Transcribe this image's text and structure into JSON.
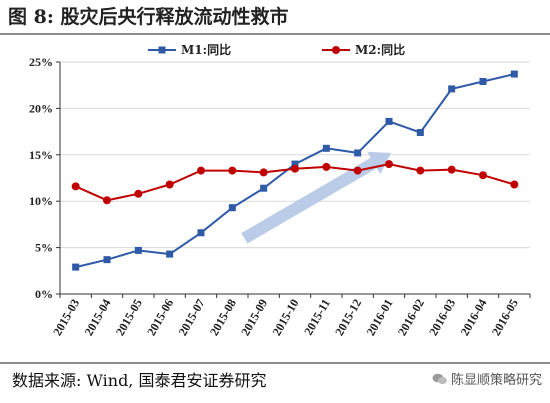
{
  "figure": {
    "title": "图 8:  股灾后央行释放流动性救市",
    "source": "数据来源:  Wind,  国泰君安证券研究",
    "watermark": "陈显顺策略研究"
  },
  "colors": {
    "m1": "#2e5aa8",
    "m2": "#c00000",
    "arrow": "#b4c7e7",
    "grid": "#d9d9d9"
  },
  "chart_data": {
    "type": "line",
    "title": "",
    "xlabel": "",
    "ylabel": "",
    "categories": [
      "2015-03",
      "2015-04",
      "2015-05",
      "2015-06",
      "2015-07",
      "2015-08",
      "2015-09",
      "2015-10",
      "2015-11",
      "2015-12",
      "2016-01",
      "2016-02",
      "2016-03",
      "2016-04",
      "2016-05"
    ],
    "ylim": [
      0,
      25
    ],
    "yticks": [
      0,
      5,
      10,
      15,
      20,
      25
    ],
    "ytick_format": "%",
    "grid": "horizontal",
    "legend_position": "top-center",
    "series": [
      {
        "name": "M1:同比",
        "marker": "square",
        "values": [
          2.9,
          3.7,
          4.7,
          4.3,
          6.6,
          9.3,
          11.4,
          14.0,
          15.7,
          15.2,
          18.6,
          17.4,
          22.1,
          22.9,
          23.7
        ]
      },
      {
        "name": "M2:同比",
        "marker": "circle",
        "values": [
          11.6,
          10.1,
          10.8,
          11.8,
          13.3,
          13.3,
          13.1,
          13.5,
          13.7,
          13.3,
          14.0,
          13.3,
          13.4,
          12.8,
          11.8
        ]
      }
    ],
    "annotations": [
      {
        "type": "arrow",
        "from": {
          "x": "2015-08",
          "y": 6.0
        },
        "to": {
          "x": "2016-01",
          "y": 15.2
        }
      }
    ]
  }
}
